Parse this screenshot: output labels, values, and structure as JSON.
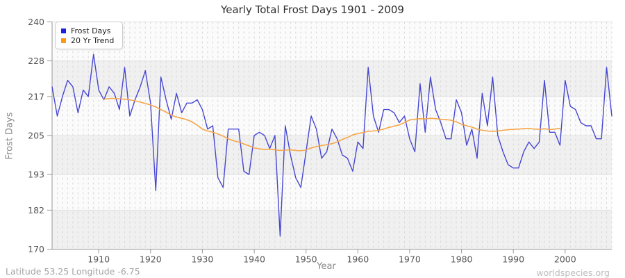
{
  "header": {
    "title": "Yearly Total Frost Days 1901 - 2009"
  },
  "axes": {
    "x_label": "Year",
    "y_label": "Frost Days"
  },
  "footer": {
    "left": "Latitude 53.25 Longitude -6.75",
    "right": "worldspecies.org"
  },
  "legend": {
    "items": [
      {
        "label": "Frost Days",
        "marker_color": "#1e1ee6"
      },
      {
        "label": "20 Yr Trend",
        "marker_color": "#ff9810"
      }
    ]
  },
  "chart_data": {
    "type": "line",
    "title": "Yearly Total Frost Days 1901 - 2009",
    "xlabel": "Year",
    "ylabel": "Frost Days",
    "xlim": [
      1901,
      2009
    ],
    "ylim": [
      170,
      240
    ],
    "y_ticks": [
      170,
      182,
      193,
      205,
      217,
      228,
      240
    ],
    "x_ticks": [
      1910,
      1920,
      1930,
      1940,
      1950,
      1960,
      1970,
      1980,
      1990,
      2000
    ],
    "grid": {
      "year_dashes": true,
      "alternating_bands": true,
      "legend_position": "top-left"
    },
    "series": [
      {
        "name": "Frost Days",
        "color": "#4646d2",
        "x_start": 1901,
        "values": [
          220,
          211,
          217,
          222,
          220,
          212,
          219,
          217,
          230,
          219,
          216,
          220,
          218,
          213,
          226,
          211,
          216,
          220,
          225,
          215,
          188,
          223,
          216,
          210,
          218,
          212,
          215,
          215,
          216,
          213,
          207,
          208,
          192,
          189,
          207,
          207,
          207,
          194,
          193,
          205,
          206,
          205,
          201,
          205,
          174,
          208,
          199,
          192,
          189,
          200,
          211,
          207,
          198,
          200,
          207,
          204,
          199,
          198,
          194,
          203,
          201,
          226,
          211,
          206,
          213,
          213,
          212,
          209,
          211,
          204,
          200,
          221,
          206,
          223,
          213,
          209,
          204,
          204,
          216,
          212,
          202,
          207,
          198,
          218,
          208,
          223,
          205,
          200,
          196,
          195,
          195,
          200,
          203,
          201,
          203,
          222,
          206,
          206,
          202,
          222,
          214,
          213,
          209,
          208,
          208,
          204,
          204,
          226,
          211
        ]
      },
      {
        "name": "20 Yr Trend",
        "color": "#f6a649",
        "x_start": 1911,
        "values": [
          216.2,
          216.4,
          216.4,
          216.3,
          216.2,
          216.0,
          215.7,
          215.3,
          214.9,
          214.4,
          213.8,
          213.0,
          212.2,
          211.3,
          210.7,
          210.3,
          209.9,
          209.2,
          208.2,
          207.0,
          206.4,
          206.0,
          205.5,
          204.8,
          204.0,
          203.4,
          203.0,
          202.4,
          201.8,
          201.2,
          200.9,
          200.7,
          200.8,
          200.6,
          200.4,
          200.5,
          200.6,
          200.4,
          200.3,
          200.6,
          201.2,
          201.6,
          201.9,
          202.2,
          202.5,
          203.0,
          203.8,
          204.4,
          205.2,
          205.6,
          205.9,
          206.3,
          206.4,
          206.6,
          207.0,
          207.5,
          207.9,
          208.3,
          209.0,
          209.8,
          210.0,
          210.2,
          210.1,
          210.3,
          210.2,
          210.0,
          209.9,
          209.7,
          209.2,
          208.5,
          208.0,
          207.6,
          207.0,
          206.6,
          206.4,
          206.3,
          206.4,
          206.6,
          206.8,
          206.9,
          207.0,
          207.1,
          207.2,
          207.0,
          206.9,
          207.1,
          206.8,
          207.0,
          207.2
        ]
      }
    ],
    "colors": {
      "plot_bg": "#fbfbfb",
      "band": "#f0f0f0",
      "gridline": "#e1e1e1",
      "year_dash": "#d8d8d8",
      "axis": "#999999",
      "tick_label": "#555555"
    }
  }
}
